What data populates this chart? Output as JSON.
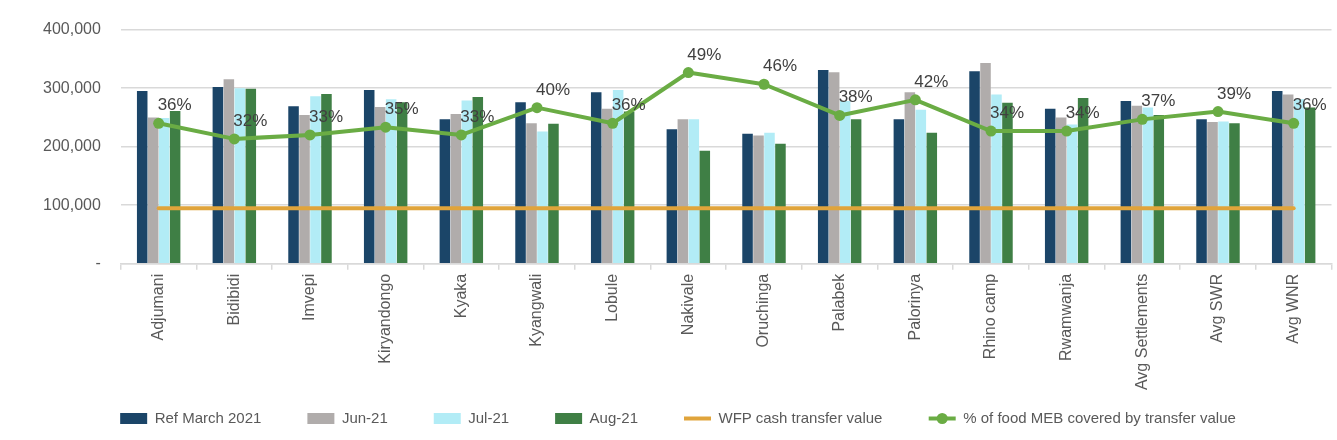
{
  "chart_data": {
    "type": "bar",
    "categories": [
      "Adjumani",
      "Bidibidi",
      "Imvepi",
      "Kiryandongo",
      "Kyaka",
      "Kyangwali",
      "Lobule",
      "Nakivale",
      "Oruchinga",
      "Palabek",
      "Palorinya",
      "Rhino camp",
      "Rwamwanja",
      "Avg Settlements",
      "Avg SWR",
      "Avg WNR"
    ],
    "series": [
      {
        "name": "Ref March 2021",
        "color": "#1b4568",
        "values": [
          295000,
          302000,
          269000,
          297000,
          247000,
          276000,
          293000,
          230000,
          222000,
          331000,
          247000,
          329000,
          265000,
          278000,
          247000,
          295000
        ]
      },
      {
        "name": "Jun-21",
        "color": "#b0acab",
        "values": [
          250000,
          315000,
          254000,
          268000,
          256000,
          240000,
          265000,
          247000,
          219000,
          327000,
          293000,
          343000,
          250000,
          270000,
          242000,
          289000
        ]
      },
      {
        "name": "Jul-21",
        "color": "#b2ecf6",
        "values": [
          249000,
          300000,
          286000,
          281000,
          279000,
          226000,
          297000,
          247000,
          224000,
          278000,
          263000,
          289000,
          238000,
          267000,
          243000,
          281000
        ]
      },
      {
        "name": "Aug-21",
        "color": "#3f7f45",
        "values": [
          261000,
          299000,
          290000,
          276000,
          285000,
          239000,
          260000,
          193000,
          205000,
          247000,
          224000,
          275000,
          283000,
          254000,
          240000,
          267000
        ]
      },
      {
        "name": "WFP cash transfer value",
        "type": "line",
        "color": "#e0a43b",
        "marker": "none",
        "values": [
          95000,
          95000,
          95000,
          95000,
          95000,
          95000,
          95000,
          95000,
          95000,
          95000,
          95000,
          95000,
          95000,
          95000,
          95000,
          95000
        ]
      },
      {
        "name": "% of food MEB covered by transfer value",
        "type": "line",
        "axis": "y2",
        "color": "#6aac44",
        "marker": "circle",
        "values": [
          36,
          32,
          33,
          35,
          33,
          40,
          36,
          49,
          46,
          38,
          42,
          34,
          34,
          37,
          39,
          36
        ],
        "value_labels": [
          "36%",
          "32%",
          "33%",
          "35%",
          "33%",
          "40%",
          "36%",
          "49%",
          "46%",
          "38%",
          "42%",
          "34%",
          "34%",
          "37%",
          "39%",
          "36%"
        ]
      }
    ],
    "ylim": [
      0,
      400000
    ],
    "yticks": [
      {
        "value": 0,
        "label": "-"
      },
      {
        "value": 100000,
        "label": "100,000"
      },
      {
        "value": 200000,
        "label": "200,000"
      },
      {
        "value": 300000,
        "label": "300,000"
      },
      {
        "value": 400000,
        "label": "400,000"
      }
    ],
    "y2lim": [
      0,
      60
    ],
    "tick_labels": "xy",
    "grid": "y",
    "legend": "bottom"
  }
}
